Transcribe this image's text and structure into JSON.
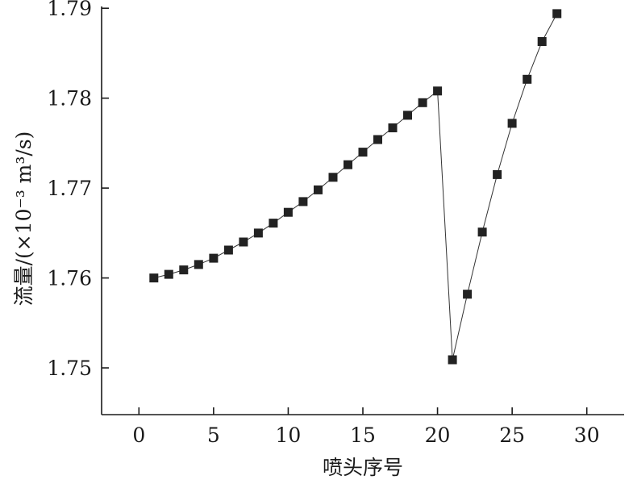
{
  "chart_data": {
    "type": "line",
    "title": "",
    "xlabel": "喷头序号",
    "ylabel": "流量/(×10⁻³ m³/s)",
    "xlim": [
      -2.5,
      32.5
    ],
    "ylim": [
      1.7448,
      1.7902
    ],
    "x_ticks": [
      0,
      5,
      10,
      15,
      20,
      25,
      30
    ],
    "x_tick_labels": [
      "0",
      "5",
      "10",
      "15",
      "20",
      "25",
      "30"
    ],
    "y_ticks": [
      1.75,
      1.76,
      1.77,
      1.78,
      1.79
    ],
    "y_tick_labels": [
      "1.75",
      "1.76",
      "1.77",
      "1.78",
      "1.79"
    ],
    "grid": false,
    "marker": "square",
    "series": [
      {
        "x": [
          1,
          2,
          3,
          4,
          5,
          6,
          7,
          8,
          9,
          10,
          11,
          12,
          13,
          14,
          15,
          16,
          17,
          18,
          19,
          20,
          21,
          22,
          23,
          24,
          25,
          26,
          27,
          28
        ],
        "values": [
          1.76,
          1.7604,
          1.7609,
          1.7615,
          1.7622,
          1.7631,
          1.764,
          1.765,
          1.7661,
          1.7673,
          1.7685,
          1.7698,
          1.7712,
          1.7726,
          1.774,
          1.7754,
          1.7767,
          1.7781,
          1.7795,
          1.7808,
          1.7509,
          1.7582,
          1.7651,
          1.7715,
          1.7772,
          1.7821,
          1.7863,
          1.7894
        ],
        "color": "#222222"
      }
    ]
  }
}
